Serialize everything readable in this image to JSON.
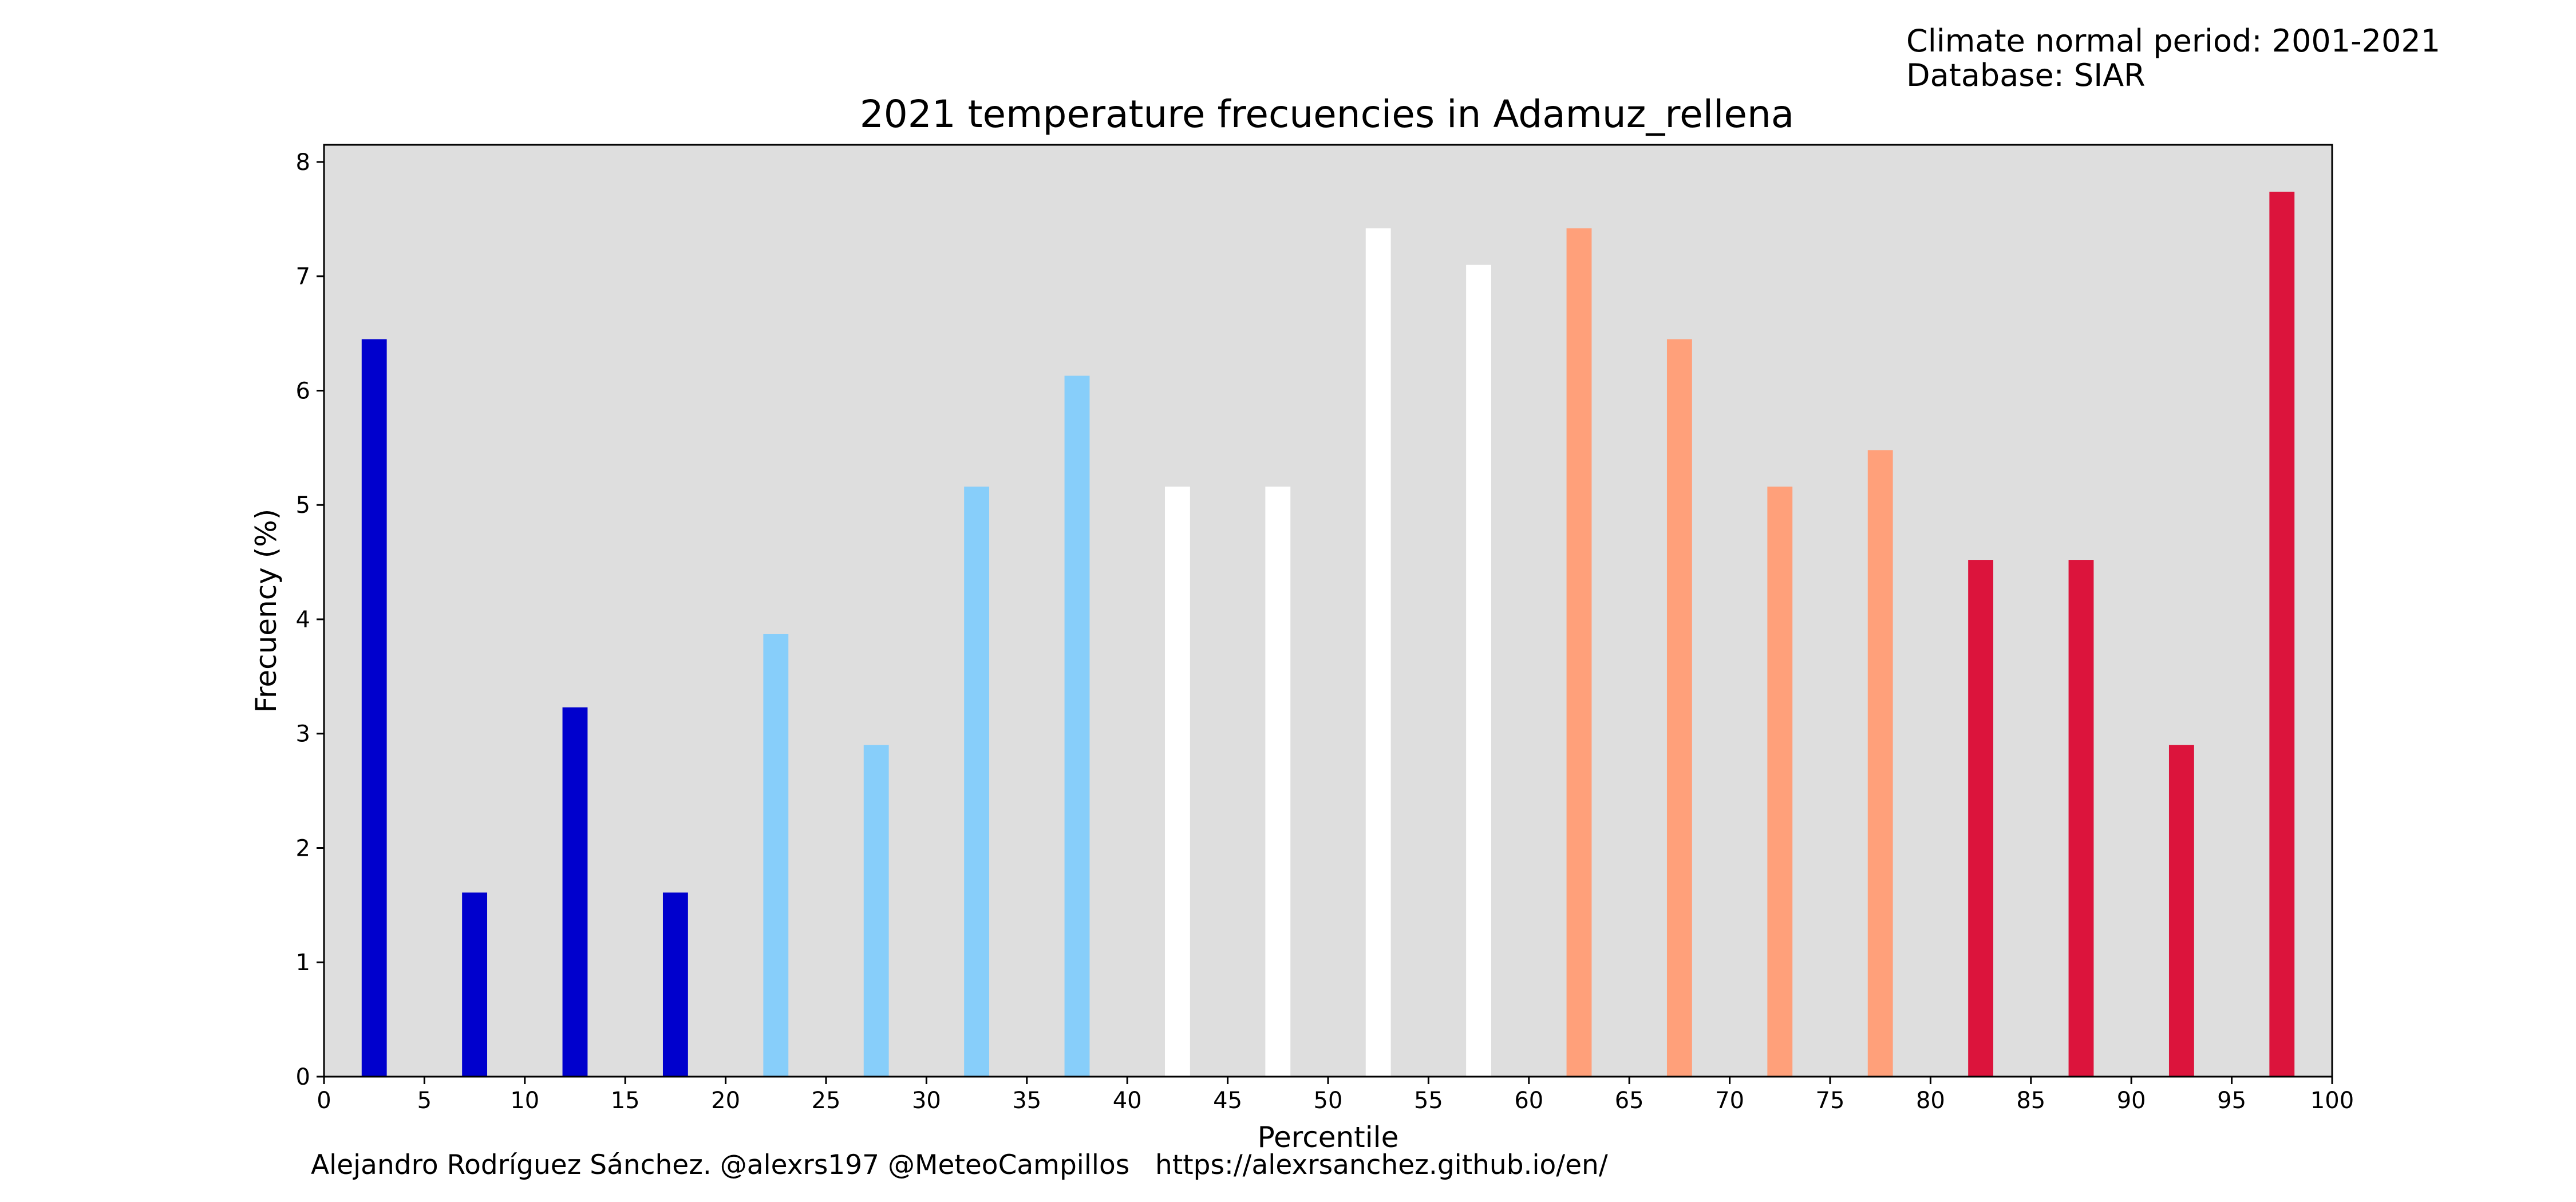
{
  "header": {
    "period_line": "Climate normal period: 2001-2021",
    "database_line": "Database: SIAR"
  },
  "footer": {
    "credit": "Alejandro Rodríguez Sánchez. @alexrs197 @MeteoCampillos   https://alexrsanchez.github.io/en/"
  },
  "colors": {
    "plot_background": "#dedede",
    "very_cold": "#0000cd",
    "cold": "#87cefa",
    "normal": "#ffffff",
    "warm": "#ffa07a",
    "very_warm": "#dc143c"
  },
  "chart_data": {
    "type": "bar",
    "title": "2021 temperature frecuencies in Adamuz_rellena",
    "xlabel": "Percentile",
    "ylabel": "Frecuency (%)",
    "xlim": [
      0,
      100
    ],
    "ylim": [
      0,
      8.15
    ],
    "xticks": [
      0,
      5,
      10,
      15,
      20,
      25,
      30,
      35,
      40,
      45,
      50,
      55,
      60,
      65,
      70,
      75,
      80,
      85,
      90,
      95,
      100
    ],
    "yticks": [
      0,
      1,
      2,
      3,
      4,
      5,
      6,
      7,
      8
    ],
    "bar_width": 1.25,
    "grid": false,
    "bars": [
      {
        "x": 2.5,
        "value": 6.45,
        "color": "#0000cd"
      },
      {
        "x": 7.5,
        "value": 1.61,
        "color": "#0000cd"
      },
      {
        "x": 12.5,
        "value": 3.23,
        "color": "#0000cd"
      },
      {
        "x": 17.5,
        "value": 1.61,
        "color": "#0000cd"
      },
      {
        "x": 22.5,
        "value": 3.87,
        "color": "#87cefa"
      },
      {
        "x": 27.5,
        "value": 2.9,
        "color": "#87cefa"
      },
      {
        "x": 32.5,
        "value": 5.16,
        "color": "#87cefa"
      },
      {
        "x": 37.5,
        "value": 6.13,
        "color": "#87cefa"
      },
      {
        "x": 42.5,
        "value": 5.16,
        "color": "#ffffff"
      },
      {
        "x": 47.5,
        "value": 5.16,
        "color": "#ffffff"
      },
      {
        "x": 52.5,
        "value": 7.42,
        "color": "#ffffff"
      },
      {
        "x": 57.5,
        "value": 7.1,
        "color": "#ffffff"
      },
      {
        "x": 62.5,
        "value": 7.42,
        "color": "#ffa07a"
      },
      {
        "x": 67.5,
        "value": 6.45,
        "color": "#ffa07a"
      },
      {
        "x": 72.5,
        "value": 5.16,
        "color": "#ffa07a"
      },
      {
        "x": 77.5,
        "value": 5.48,
        "color": "#ffa07a"
      },
      {
        "x": 82.5,
        "value": 4.52,
        "color": "#dc143c"
      },
      {
        "x": 87.5,
        "value": 4.52,
        "color": "#dc143c"
      },
      {
        "x": 92.5,
        "value": 2.9,
        "color": "#dc143c"
      },
      {
        "x": 97.5,
        "value": 7.74,
        "color": "#dc143c"
      }
    ]
  }
}
